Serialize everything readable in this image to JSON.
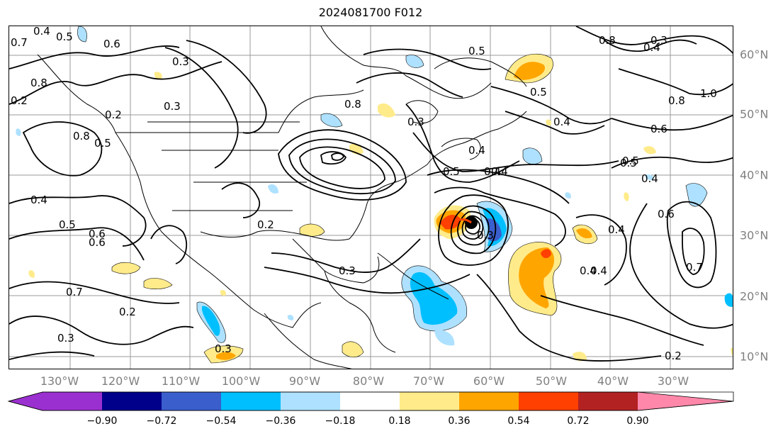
{
  "title": "2024081700 F012",
  "lon_labels": [
    "130°W",
    "120°W",
    "110°W",
    "100°W",
    "90°W",
    "80°W",
    "70°W",
    "60°W",
    "50°W",
    "40°W",
    "30°W"
  ],
  "lat_labels": [
    "60°N",
    "50°N",
    "40°N",
    "30°N",
    "20°N",
    "10°N"
  ],
  "colorbar": {
    "ticks": [
      "−0.90",
      "−0.72",
      "−0.54",
      "−0.36",
      "−0.18",
      "0.18",
      "0.36",
      "0.54",
      "0.72",
      "0.90"
    ],
    "colors": [
      "#9b30d0",
      "#00008b",
      "#3a5fcd",
      "#00bfff",
      "#aee1ff",
      "#ffffff",
      "#ffeb8a",
      "#ffa500",
      "#ff4000",
      "#b22222",
      "#ff88aa"
    ]
  },
  "contour_labels": [
    "0.4",
    "0.5",
    "0.6",
    "0.7",
    "0.8",
    "0.2",
    "0.3",
    "0.2",
    "0.3",
    "0.4",
    "0.5",
    "0.6",
    "0.7",
    "0.8",
    "0.5",
    "0.8",
    "0.3",
    "0.5",
    "0.4",
    "0.4",
    "0.5",
    "0.4",
    "0.5",
    "0.6",
    "0.8",
    "1.0",
    "0.7",
    "0.6",
    "0.4",
    "0.2",
    "0.3",
    "0.2",
    "0.3",
    "0.2",
    "0.3",
    "0.6",
    "0.4",
    "0.4",
    "0.5",
    "0.4",
    "0.3",
    "0.8",
    "0.3",
    "0.4",
    "0.4",
    "0.5"
  ]
}
